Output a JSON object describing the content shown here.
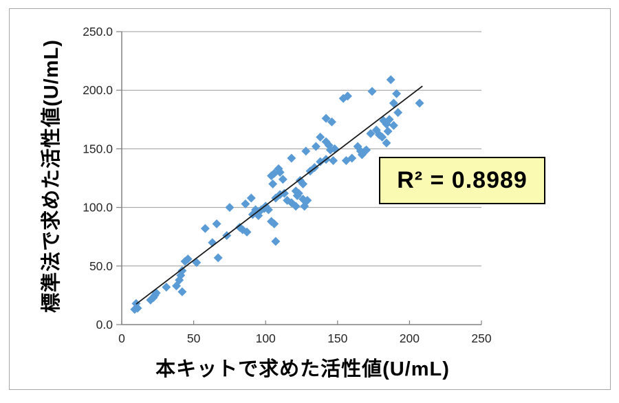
{
  "window": {
    "background": "#ffffff",
    "frame_border_color": "#a6a6a6"
  },
  "annotation": {
    "r_squared_text": "R² = 0.8989",
    "fill_color": "#fafab2",
    "border_color": "#000000"
  },
  "chart_data": {
    "type": "scatter",
    "title": "",
    "xlabel": "本キットで求めた活性値(U/mL)",
    "ylabel": "標準法で求めた活性値(U/mL)",
    "xlim": [
      0,
      250
    ],
    "ylim": [
      0,
      250
    ],
    "x_ticks": [
      "0",
      "50",
      "100",
      "150",
      "200",
      "250"
    ],
    "y_ticks": [
      "0.0",
      "50.0",
      "100.0",
      "150.0",
      "200.0",
      "250.0"
    ],
    "tick_values": [
      0,
      50,
      100,
      150,
      200,
      250
    ],
    "grid": "horizontal-only",
    "gridline_color": "#999999",
    "axis_color": "#808080",
    "tick_label_color": "#262626",
    "legend": "none",
    "marker": {
      "shape": "diamond",
      "color": "#5b9bd5",
      "size": 13
    },
    "trendline": {
      "x1": 10,
      "y1": 17.5,
      "x2": 209,
      "y2": 203.5,
      "color": "#1a1a1a"
    },
    "points": [
      [
        9,
        13
      ],
      [
        10,
        18
      ],
      [
        11,
        14
      ],
      [
        20,
        21
      ],
      [
        22,
        23
      ],
      [
        23,
        25
      ],
      [
        24,
        27
      ],
      [
        31,
        32
      ],
      [
        38,
        33
      ],
      [
        40,
        38
      ],
      [
        41,
        42
      ],
      [
        42,
        46
      ],
      [
        42,
        28
      ],
      [
        44,
        54
      ],
      [
        46,
        56
      ],
      [
        52,
        53
      ],
      [
        58,
        82
      ],
      [
        63,
        70
      ],
      [
        66,
        86
      ],
      [
        67,
        57
      ],
      [
        73,
        76
      ],
      [
        75,
        100
      ],
      [
        82,
        83
      ],
      [
        84,
        81
      ],
      [
        87,
        79
      ],
      [
        86,
        103
      ],
      [
        90,
        108
      ],
      [
        91,
        94
      ],
      [
        93,
        98
      ],
      [
        95,
        93
      ],
      [
        97,
        98
      ],
      [
        99,
        99
      ],
      [
        100,
        101
      ],
      [
        102,
        98
      ],
      [
        104,
        88
      ],
      [
        106,
        86
      ],
      [
        107,
        71
      ],
      [
        105,
        120
      ],
      [
        104,
        127
      ],
      [
        106,
        129
      ],
      [
        109,
        133
      ],
      [
        110,
        130
      ],
      [
        112,
        124
      ],
      [
        107,
        108
      ],
      [
        110,
        111
      ],
      [
        113,
        112
      ],
      [
        115,
        106
      ],
      [
        118,
        104
      ],
      [
        121,
        101
      ],
      [
        122,
        110
      ],
      [
        123,
        112
      ],
      [
        126,
        107
      ],
      [
        127,
        101
      ],
      [
        129,
        106
      ],
      [
        121,
        114
      ],
      [
        124,
        123
      ],
      [
        126,
        120
      ],
      [
        131,
        131
      ],
      [
        134,
        134
      ],
      [
        138,
        139
      ],
      [
        142,
        141
      ],
      [
        147,
        140
      ],
      [
        118,
        142
      ],
      [
        128,
        148
      ],
      [
        135,
        152
      ],
      [
        138,
        160
      ],
      [
        142,
        156
      ],
      [
        144,
        153
      ],
      [
        145,
        149
      ],
      [
        148,
        150
      ],
      [
        156,
        140
      ],
      [
        160,
        142
      ],
      [
        164,
        152
      ],
      [
        166,
        148
      ],
      [
        167,
        145
      ],
      [
        169,
        148
      ],
      [
        170,
        149
      ],
      [
        142,
        176
      ],
      [
        146,
        173
      ],
      [
        154,
        193
      ],
      [
        157,
        195
      ],
      [
        173,
        163
      ],
      [
        177,
        166
      ],
      [
        179,
        162
      ],
      [
        181,
        160
      ],
      [
        184,
        155
      ],
      [
        184,
        171
      ],
      [
        182,
        174
      ],
      [
        186,
        175
      ],
      [
        189,
        170
      ],
      [
        185,
        165
      ],
      [
        174,
        199
      ],
      [
        187,
        209
      ],
      [
        191,
        197
      ],
      [
        189,
        189
      ],
      [
        192,
        181
      ],
      [
        207,
        189
      ]
    ]
  }
}
